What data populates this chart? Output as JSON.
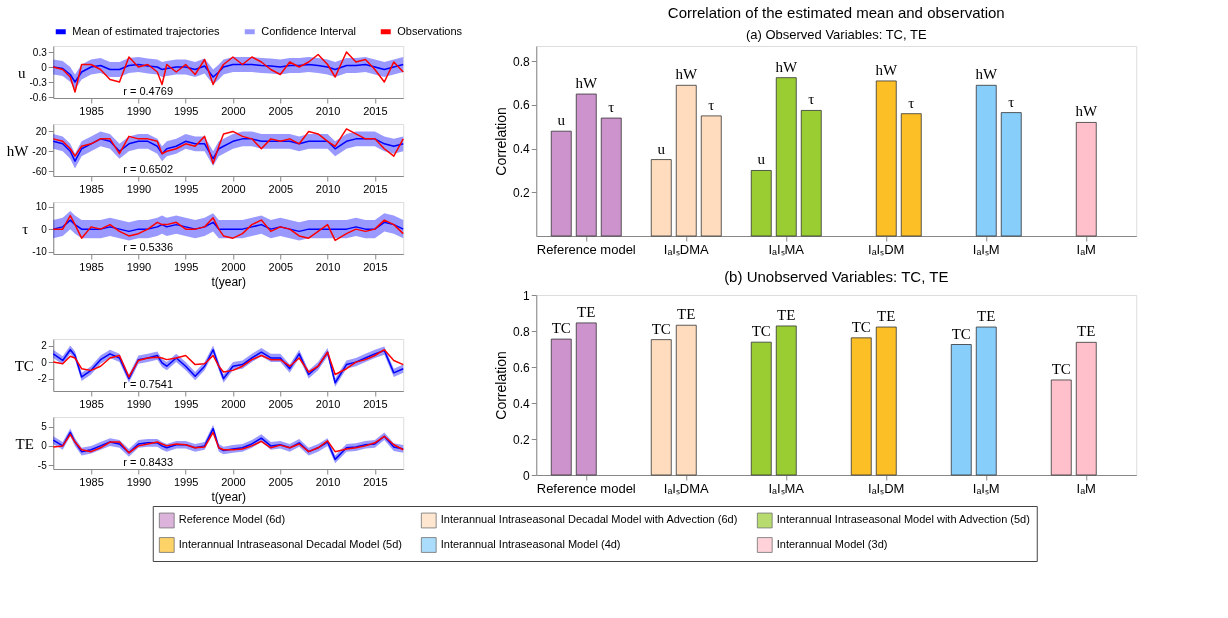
{
  "chart_data": [
    {
      "type": "line",
      "ylabel": "u",
      "legend": "top",
      "annotations": [
        "r = 0.4769",
        "Confidence Interval"
      ],
      "xlim": [
        1981,
        2018
      ],
      "xticks": [
        1985,
        1990,
        1995,
        2000,
        2005,
        2010,
        2015
      ],
      "ylim": [
        -0.62,
        0.42
      ],
      "yticks": [
        0.3,
        0,
        -0.3,
        -0.6
      ],
      "x": [
        1981,
        1982,
        1982.8,
        1983.3,
        1984,
        1985,
        1986,
        1987,
        1988,
        1989,
        1990,
        1991,
        1992,
        1992.5,
        1993,
        1994,
        1995,
        1996,
        1997,
        1997.9,
        1998.5,
        1999,
        2000,
        2001,
        2002,
        2003,
        2004,
        2005,
        2006,
        2007,
        2008,
        2009,
        2010,
        2010.8,
        2012,
        2013,
        2014,
        2015,
        2016,
        2017,
        2018
      ],
      "series": [
        {
          "name": "Mean of estimated trajectories",
          "type": "line",
          "color": "#0000ff",
          "values": [
            0,
            -0.03,
            -0.15,
            -0.3,
            -0.1,
            0,
            0.03,
            -0.05,
            -0.05,
            0.03,
            0.05,
            0.02,
            0,
            -0.05,
            -0.03,
            0,
            0,
            -0.05,
            0.02,
            -0.2,
            -0.1,
            0,
            0.05,
            0.05,
            0.05,
            0.03,
            0.02,
            0,
            0.03,
            0.03,
            0.05,
            0.03,
            0,
            -0.05,
            0.03,
            0.03,
            0.05,
            0,
            -0.05,
            0,
            0.05
          ],
          "lower": [
            -0.15,
            -0.18,
            -0.3,
            -0.45,
            -0.25,
            -0.15,
            -0.12,
            -0.2,
            -0.2,
            -0.12,
            -0.1,
            -0.13,
            -0.15,
            -0.2,
            -0.18,
            -0.15,
            -0.15,
            -0.2,
            -0.13,
            -0.35,
            -0.25,
            -0.15,
            -0.1,
            -0.1,
            -0.1,
            -0.12,
            -0.13,
            -0.15,
            -0.12,
            -0.12,
            -0.1,
            -0.12,
            -0.15,
            -0.2,
            -0.12,
            -0.12,
            -0.1,
            -0.15,
            -0.2,
            -0.15,
            -0.1
          ],
          "upper": [
            0.15,
            0.12,
            0,
            -0.15,
            0.05,
            0.15,
            0.18,
            0.1,
            0.1,
            0.18,
            0.2,
            0.17,
            0.15,
            0.1,
            0.12,
            0.15,
            0.15,
            0.1,
            0.17,
            -0.05,
            0.05,
            0.15,
            0.2,
            0.2,
            0.2,
            0.18,
            0.17,
            0.15,
            0.18,
            0.18,
            0.2,
            0.18,
            0.15,
            0.1,
            0.18,
            0.18,
            0.2,
            0.15,
            0.1,
            0.15,
            0.2
          ]
        },
        {
          "name": "Observations",
          "type": "line",
          "color": "#ff0000",
          "values": [
            0,
            -0.05,
            -0.2,
            -0.5,
            0.05,
            0.05,
            -0.05,
            -0.25,
            -0.3,
            0.2,
            0,
            0.05,
            -0.1,
            -0.35,
            0.05,
            -0.1,
            0.05,
            -0.15,
            0.15,
            -0.35,
            -0.1,
            0.05,
            0.2,
            0.05,
            0.2,
            0.1,
            -0.05,
            -0.15,
            0.1,
            0,
            0.1,
            0.25,
            0.05,
            -0.2,
            0.3,
            0.1,
            0.15,
            -0.05,
            -0.3,
            0.1,
            -0.1
          ]
        }
      ]
    },
    {
      "type": "line",
      "ylabel": "hW",
      "annotations": [
        "r = 0.6502"
      ],
      "xlim": [
        1981,
        2018
      ],
      "xticks": [
        1985,
        1990,
        1995,
        2000,
        2005,
        2010,
        2015
      ],
      "ylim": [
        -70,
        35
      ],
      "yticks": [
        20,
        -20,
        -60
      ],
      "x": [
        1981,
        1982,
        1982.8,
        1983.3,
        1984,
        1985,
        1986,
        1987,
        1988,
        1989,
        1990,
        1991,
        1992,
        1992.5,
        1993,
        1994,
        1995,
        1996,
        1997,
        1997.9,
        1998.5,
        1999,
        2000,
        2001,
        2002,
        2003,
        2004,
        2005,
        2006,
        2007,
        2008,
        2009,
        2010,
        2010.8,
        2012,
        2013,
        2014,
        2015,
        2016,
        2017,
        2018
      ],
      "series": [
        {
          "type": "line",
          "color": "#0000ff",
          "values": [
            0,
            -5,
            -20,
            -40,
            -15,
            -5,
            5,
            0,
            -20,
            -5,
            0,
            0,
            -10,
            -25,
            -15,
            -10,
            0,
            -5,
            -5,
            -35,
            -15,
            -10,
            0,
            5,
            5,
            0,
            0,
            0,
            0,
            -5,
            0,
            0,
            0,
            -15,
            0,
            5,
            5,
            5,
            -5,
            -10,
            -5
          ],
          "lower": [
            -15,
            -20,
            -35,
            -55,
            -30,
            -20,
            -10,
            -15,
            -35,
            -20,
            -15,
            -15,
            -25,
            -40,
            -30,
            -25,
            -15,
            -20,
            -20,
            -50,
            -30,
            -25,
            -15,
            -10,
            -10,
            -15,
            -15,
            -15,
            -15,
            -20,
            -15,
            -15,
            -15,
            -30,
            -15,
            -10,
            -10,
            -10,
            -20,
            -25,
            -20
          ],
          "upper": [
            15,
            10,
            -5,
            -25,
            0,
            10,
            20,
            15,
            -5,
            10,
            15,
            15,
            5,
            -10,
            0,
            5,
            15,
            10,
            10,
            -20,
            0,
            5,
            15,
            20,
            20,
            15,
            15,
            15,
            15,
            10,
            15,
            15,
            15,
            0,
            15,
            20,
            20,
            20,
            10,
            5,
            10
          ]
        },
        {
          "type": "line",
          "color": "#ff0000",
          "values": [
            5,
            0,
            -15,
            -30,
            -10,
            -5,
            5,
            5,
            -25,
            10,
            5,
            5,
            0,
            -25,
            -20,
            -15,
            -5,
            -10,
            10,
            -45,
            -10,
            15,
            20,
            10,
            5,
            -15,
            5,
            0,
            5,
            -5,
            20,
            15,
            0,
            -10,
            25,
            15,
            5,
            5,
            -15,
            -30,
            5
          ]
        }
      ]
    },
    {
      "type": "line",
      "ylabel": "τ",
      "xlabel": "t(year)",
      "annotations": [
        "r = 0.5336"
      ],
      "xlim": [
        1981,
        2018
      ],
      "xticks": [
        1985,
        1990,
        1995,
        2000,
        2005,
        2010,
        2015
      ],
      "ylim": [
        -11,
        12
      ],
      "yticks": [
        10,
        0,
        -10
      ],
      "x": [
        1981,
        1982,
        1982.8,
        1983.3,
        1984,
        1985,
        1986,
        1987,
        1988,
        1989,
        1990,
        1991,
        1992,
        1992.5,
        1993,
        1994,
        1995,
        1996,
        1997,
        1997.9,
        1998.5,
        1999,
        2000,
        2001,
        2002,
        2003,
        2004,
        2005,
        2006,
        2007,
        2008,
        2009,
        2010,
        2010.8,
        2012,
        2013,
        2014,
        2015,
        2016,
        2017,
        2018
      ],
      "series": [
        {
          "type": "line",
          "color": "#0000ff",
          "values": [
            0,
            1,
            4,
            2,
            0,
            0,
            0,
            1,
            0,
            -1,
            0,
            0,
            1,
            2,
            1,
            2,
            1,
            0,
            1,
            3,
            0,
            0,
            0,
            0,
            1,
            2,
            0,
            1,
            0,
            -1,
            0,
            0,
            0,
            0,
            0,
            1,
            0,
            0,
            3,
            2,
            0
          ],
          "lower": [
            -4,
            -3,
            0,
            -2,
            -4,
            -4,
            -4,
            -3,
            -4,
            -5,
            -4,
            -4,
            -3,
            -2,
            -3,
            -2,
            -3,
            -4,
            -3,
            -1,
            -4,
            -4,
            -4,
            -4,
            -3,
            -2,
            -4,
            -3,
            -4,
            -5,
            -4,
            -4,
            -4,
            -4,
            -4,
            -3,
            -4,
            -4,
            -1,
            -2,
            -4
          ],
          "upper": [
            4,
            5,
            8,
            6,
            4,
            4,
            4,
            5,
            4,
            3,
            4,
            4,
            5,
            6,
            5,
            6,
            5,
            4,
            5,
            7,
            4,
            4,
            4,
            4,
            5,
            6,
            4,
            5,
            4,
            3,
            4,
            4,
            4,
            4,
            4,
            5,
            4,
            4,
            7,
            6,
            4
          ]
        },
        {
          "type": "line",
          "color": "#ff0000",
          "values": [
            0,
            0,
            6,
            2,
            -4,
            1,
            0,
            2,
            -1,
            -3,
            -2,
            0,
            3,
            2,
            2,
            3,
            0,
            0,
            1,
            5,
            0,
            -3,
            -4,
            -2,
            2,
            4,
            -1,
            1,
            0,
            -3,
            -4,
            -1,
            2,
            -5,
            -2,
            0,
            -1,
            0,
            4,
            2,
            -2
          ]
        }
      ]
    },
    {
      "type": "line",
      "ylabel": "TC",
      "annotations": [
        "r = 0.7541"
      ],
      "xlim": [
        1981,
        2018
      ],
      "xticks": [
        1985,
        1990,
        1995,
        2000,
        2005,
        2010,
        2015
      ],
      "ylim": [
        -3.5,
        2.8
      ],
      "yticks": [
        2,
        0,
        -2
      ],
      "x": [
        1981,
        1982,
        1982.8,
        1983.3,
        1984,
        1985,
        1986,
        1987,
        1988,
        1989,
        1990,
        1991,
        1992,
        1992.5,
        1993,
        1994,
        1995,
        1996,
        1997,
        1997.9,
        1998.5,
        1999,
        2000,
        2001,
        2002,
        2003,
        2004,
        2005,
        2006,
        2007,
        2008,
        2009,
        2010,
        2010.8,
        2012,
        2013,
        2014,
        2015,
        2016,
        2017,
        2018
      ],
      "series": [
        {
          "type": "line",
          "color": "#0000ff",
          "values": [
            1,
            0.2,
            1.5,
            0.8,
            -1.8,
            -1,
            0.3,
            1,
            0.5,
            -2,
            0.3,
            0.5,
            0.8,
            -0.1,
            -0.5,
            0.5,
            -0.5,
            -1.7,
            -0.5,
            1.5,
            -0.5,
            -2,
            -0.5,
            -0.3,
            0.5,
            1.2,
            0.5,
            0.5,
            -0.8,
            1,
            -1.5,
            -0.5,
            1.2,
            -2.5,
            -0.3,
            0,
            0.5,
            1,
            1.4,
            -1.3,
            -0.8
          ],
          "lower": [
            0.5,
            -0.3,
            1,
            0.3,
            -2.3,
            -1.5,
            -0.2,
            0.5,
            0,
            -2.5,
            -0.2,
            0,
            0.3,
            -0.6,
            -1,
            0,
            -1,
            -2.2,
            -1,
            1,
            -1,
            -2.5,
            -1,
            -0.8,
            0,
            0.7,
            0,
            0,
            -1.3,
            0.5,
            -2,
            -1,
            0.7,
            -3,
            -0.8,
            -0.5,
            0,
            0.5,
            0.9,
            -1.8,
            -1.3
          ],
          "upper": [
            1.5,
            0.7,
            2,
            1.3,
            -1.3,
            -0.5,
            0.8,
            1.5,
            1,
            -1.5,
            0.8,
            1,
            1.3,
            0.4,
            0,
            1,
            0,
            -1.2,
            0,
            2,
            0,
            -1.5,
            0,
            0.2,
            1,
            1.7,
            1,
            1,
            -0.3,
            1.5,
            -1,
            0,
            1.7,
            -2,
            0.2,
            0.5,
            1,
            1.5,
            1.9,
            -0.8,
            -0.3
          ]
        },
        {
          "type": "line",
          "color": "#ff0000",
          "values": [
            0,
            -0.2,
            0.7,
            0.5,
            -0.8,
            -1,
            -0.5,
            0.5,
            0.8,
            -1.8,
            0.2,
            0.5,
            0.6,
            0.5,
            0.3,
            0.5,
            0.8,
            -0.3,
            -0.2,
            0.8,
            -0.5,
            -1.2,
            -1,
            -0.5,
            0.3,
            0.8,
            0.3,
            0.3,
            -0.5,
            0.5,
            -1.2,
            -0.5,
            1.2,
            -1.5,
            -0.8,
            0,
            0.3,
            0.8,
            1.5,
            0.2,
            -0.3
          ]
        }
      ]
    },
    {
      "type": "line",
      "ylabel": "TE",
      "xlabel": "t(year)",
      "annotations": [
        "r = 0.8433"
      ],
      "xlim": [
        1981,
        2018
      ],
      "xticks": [
        1985,
        1990,
        1995,
        2000,
        2005,
        2010,
        2015
      ],
      "ylim": [
        -6,
        7.5
      ],
      "yticks": [
        5,
        0,
        -5
      ],
      "x": [
        1981,
        1982,
        1982.8,
        1983.3,
        1984,
        1985,
        1986,
        1987,
        1988,
        1989,
        1990,
        1991,
        1992,
        1992.5,
        1993,
        1994,
        1995,
        1996,
        1997,
        1997.9,
        1998.5,
        1999,
        2000,
        2001,
        2002,
        2003,
        2004,
        2005,
        2006,
        2007,
        2008,
        2009,
        2010,
        2010.8,
        2012,
        2013,
        2014,
        2015,
        2016,
        2017,
        2018
      ],
      "series": [
        {
          "type": "line",
          "color": "#0000ff",
          "values": [
            1.5,
            0,
            3.5,
            1,
            -1.5,
            -1,
            0,
            1,
            0.5,
            -1.8,
            0.5,
            0.8,
            0.8,
            0,
            -0.5,
            0.3,
            0.3,
            -0.5,
            0,
            4.5,
            -0.5,
            -1.2,
            -0.8,
            -0.5,
            0.5,
            2,
            0,
            0.3,
            -0.5,
            0.8,
            -1.5,
            -0.5,
            1,
            -3.5,
            -0.5,
            -0.3,
            0.3,
            0.5,
            2.5,
            -0.3,
            -0.8
          ],
          "lower": [
            0.5,
            -1,
            2.5,
            0,
            -2.5,
            -2,
            -1,
            0,
            -0.5,
            -2.8,
            -0.5,
            -0.2,
            -0.2,
            -1,
            -1.5,
            -0.7,
            -0.7,
            -1.5,
            -1,
            3.5,
            -1.5,
            -2.2,
            -1.8,
            -1.5,
            -0.5,
            1,
            -1,
            -0.7,
            -1.5,
            -0.2,
            -2.5,
            -1.5,
            0,
            -4.5,
            -1.5,
            -1.3,
            -0.7,
            -0.5,
            1.5,
            -1.3,
            -1.8
          ],
          "upper": [
            2.5,
            1,
            4.5,
            2,
            -0.5,
            0,
            1,
            2,
            1.5,
            -0.8,
            1.5,
            1.8,
            1.8,
            1,
            0.5,
            1.3,
            1.3,
            0.5,
            1,
            5.5,
            0.5,
            -0.2,
            0.2,
            0.5,
            1.5,
            3,
            1,
            1.3,
            0.5,
            1.8,
            -0.5,
            0.5,
            2,
            -2.5,
            0.5,
            0.7,
            1.3,
            1.5,
            3.5,
            0.7,
            0.2
          ]
        },
        {
          "type": "line",
          "color": "#ff0000",
          "values": [
            -0.3,
            0,
            3,
            1,
            -1,
            -1.5,
            -0.5,
            1,
            1,
            -1.8,
            0,
            0.5,
            1,
            0.5,
            0,
            0.5,
            0.3,
            -0.5,
            -0.3,
            3.5,
            -0.5,
            -1,
            -1,
            -0.8,
            0,
            1.2,
            -0.5,
            0.2,
            -0.5,
            0.5,
            -1.5,
            -0.5,
            1.3,
            -1.5,
            -0.8,
            -0.5,
            0,
            0.8,
            2.5,
            0.3,
            -1
          ]
        }
      ]
    },
    {
      "type": "bar",
      "title": "Correlation of the estimated mean and observation",
      "subtitle": "(a) Observed Variables: TC, TE",
      "ylabel": "Correlation",
      "ylim": [
        0,
        0.87
      ],
      "yticks": [
        0.2,
        0.4,
        0.6,
        0.8
      ],
      "categories": [
        "Reference model",
        "IₐIₛDMA",
        "IₐIₛMA",
        "IₐIₛDM",
        "IₐIₛM",
        "IₐM"
      ],
      "series": [
        {
          "name": "u",
          "values": [
            0.48,
            0.35,
            0.3,
            null,
            null,
            null
          ],
          "colors": [
            "#cc93cc",
            "#fedcbd",
            "#9acd32",
            "#fdbf26",
            "#87cefa",
            "#ffc0cb"
          ]
        },
        {
          "name": "hW",
          "values": [
            0.65,
            0.69,
            0.725,
            0.71,
            0.69,
            0.52
          ],
          "colors": [
            "#cc93cc",
            "#fedcbd",
            "#9acd32",
            "#fdbf26",
            "#87cefa",
            "#ffc0cb"
          ]
        },
        {
          "name": "τ",
          "values": [
            0.54,
            0.55,
            0.575,
            0.56,
            0.565,
            null
          ],
          "colors": [
            "#cc93cc",
            "#fedcbd",
            "#9acd32",
            "#fdbf26",
            "#87cefa",
            "#ffc0cb"
          ]
        }
      ]
    },
    {
      "type": "bar",
      "title": "(b) Unobserved Variables: TC, TE",
      "ylabel": "Correlation",
      "ylim": [
        0,
        1
      ],
      "yticks": [
        0,
        0.2,
        0.4,
        0.6,
        0.8,
        1
      ],
      "categories": [
        "Reference model",
        "IₐIₛDMA",
        "IₐIₛMA",
        "IₐIₛDM",
        "IₐIₛM",
        "IₐM"
      ],
      "series": [
        {
          "name": "TC",
          "values": [
            0.755,
            0.752,
            0.738,
            0.762,
            0.725,
            0.528
          ],
          "colors": [
            "#cc93cc",
            "#fedcbd",
            "#9acd32",
            "#fdbf26",
            "#87cefa",
            "#ffc0cb"
          ]
        },
        {
          "name": "TE",
          "values": [
            0.845,
            0.832,
            0.828,
            0.822,
            0.822,
            0.737
          ],
          "colors": [
            "#cc93cc",
            "#fedcbd",
            "#9acd32",
            "#fdbf26",
            "#87cefa",
            "#ffc0cb"
          ]
        }
      ]
    },
    {
      "type": "other",
      "categories": [
        "Reference Model (6d)",
        "Interannual Intraseasonal Decadal Model with Advection (6d)",
        "Interannual Intraseasonal Model with Advection (5d)",
        "Interannual Intraseasonal Decadal Model (5d)",
        "Interannual Intraseasonal Model (4d)",
        "Interannual Model (3d)"
      ],
      "colors": [
        "#cc93cc",
        "#fedcbd",
        "#9acd32",
        "#fdbf26",
        "#87cefa",
        "#ffc0cb"
      ]
    }
  ]
}
